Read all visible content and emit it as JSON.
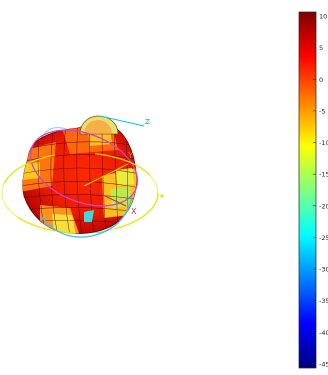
{
  "chart_data": {
    "type": "heatmap",
    "title": "",
    "colorbar": {
      "colormap": "jet",
      "placement": "right",
      "range": [
        -45,
        10
      ],
      "tick_labels": [
        "10",
        "5",
        "0",
        "-5",
        "-10",
        "-15",
        "-20",
        "-25",
        "-30",
        "-35",
        "-40",
        "-45"
      ]
    },
    "axes_labels": {
      "x": "X",
      "y": "Y",
      "z": "Z"
    },
    "colors": {
      "x_axis": "#d4285a",
      "y_axis": "#c9c900",
      "z_axis": "#00c8d8",
      "ring_xy": "#e6e600",
      "ring_xz": "#d040d0",
      "ring_yz": "#40c0f0"
    }
  }
}
